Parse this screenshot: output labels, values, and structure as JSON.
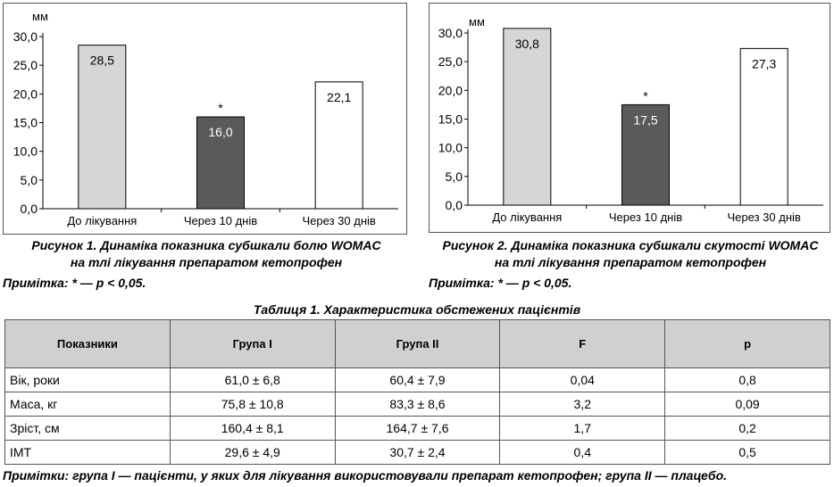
{
  "charts": [
    {
      "caption_line1": "Рисунок 1. Динаміка показника субшкали болю WOMAC",
      "caption_line2": "на тлі лікування препаратом кетопрофен",
      "note": "Примітка: * — p < 0,05."
    },
    {
      "caption_line1": "Рисунок 2. Динаміка показника субшкали скутості WOMAC",
      "caption_line2": "на тлі лікування препаратом кетопрофен",
      "note": "Примітка: * — p < 0,05."
    }
  ],
  "chart_data": [
    {
      "type": "bar",
      "ylabel": "мм",
      "categories": [
        "До лікування",
        "Через 10 днів",
        "Через 30 днів"
      ],
      "values": [
        28.5,
        16.0,
        22.1
      ],
      "value_labels": [
        "28,5",
        "16,0",
        "22,1"
      ],
      "bar_colors": [
        "#d6d6d6",
        "#5a5a5a",
        "#ffffff"
      ],
      "value_label_colors": [
        "#000000",
        "#ffffff",
        "#000000"
      ],
      "significance_marks": [
        "",
        "*",
        ""
      ],
      "yticks": [
        "0,0",
        "5,0",
        "10,0",
        "15,0",
        "20,0",
        "25,0",
        "30,0"
      ],
      "ylim": [
        0,
        30
      ],
      "grid": false
    },
    {
      "type": "bar",
      "ylabel": "мм",
      "categories": [
        "До лікування",
        "Через 10 днів",
        "Через 30 днів"
      ],
      "values": [
        30.8,
        17.5,
        27.3
      ],
      "value_labels": [
        "30,8",
        "17,5",
        "27,3"
      ],
      "bar_colors": [
        "#d6d6d6",
        "#5a5a5a",
        "#ffffff"
      ],
      "value_label_colors": [
        "#000000",
        "#ffffff",
        "#000000"
      ],
      "significance_marks": [
        "",
        "*",
        ""
      ],
      "yticks": [
        "0,0",
        "5,0",
        "10,0",
        "15,0",
        "20,0",
        "25,0",
        "30,0"
      ],
      "ylim": [
        0,
        30
      ],
      "grid": false
    }
  ],
  "table": {
    "title": "Таблиця 1. Характеристика обстежених пацієнтів",
    "headers": [
      "Показники",
      "Група I",
      "Група II",
      "F",
      "p"
    ],
    "rows": [
      [
        "Вік, роки",
        "61,0 ± 6,8",
        "60,4 ± 7,9",
        "0,04",
        "0,8"
      ],
      [
        "Маса, кг",
        "75,8 ± 10,8",
        "83,3 ± 8,6",
        "3,2",
        "0,09"
      ],
      [
        "Зріст, см",
        "160,4 ± 8,1",
        "164,7 ± 7,6",
        "1,7",
        "0,2"
      ],
      [
        "ІМТ",
        "29,6 ± 4,9",
        "30,7 ± 2,4",
        "0,4",
        "0,5"
      ]
    ],
    "footnote": "Примітки: група I — пацієнти, у яких для лікування використовували препарат кетопрофен; група II — плацебо."
  }
}
